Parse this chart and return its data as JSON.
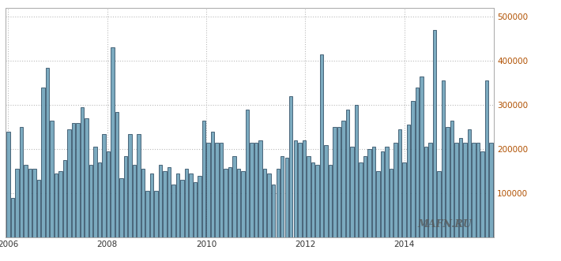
{
  "ylim": [
    0,
    520000
  ],
  "yticks": [
    100000,
    200000,
    300000,
    400000,
    500000
  ],
  "xtick_years": [
    2006,
    2008,
    2010,
    2012,
    2014
  ],
  "background_color": "#ffffff",
  "bar_fill_color": "#7baabf",
  "bar_edge_color": "#1c3a52",
  "grid_color": "#bbbbbb",
  "watermark": "MAFN.RU",
  "year_start": 2006,
  "year_end": 2015.75,
  "values": [
    240000,
    90000,
    155000,
    250000,
    165000,
    155000,
    155000,
    130000,
    340000,
    385000,
    265000,
    145000,
    150000,
    175000,
    245000,
    260000,
    260000,
    295000,
    270000,
    165000,
    205000,
    170000,
    235000,
    195000,
    430000,
    285000,
    135000,
    185000,
    235000,
    165000,
    235000,
    155000,
    105000,
    145000,
    105000,
    165000,
    150000,
    160000,
    120000,
    145000,
    130000,
    155000,
    145000,
    125000,
    140000,
    265000,
    215000,
    240000,
    215000,
    215000,
    155000,
    160000,
    185000,
    155000,
    150000,
    290000,
    215000,
    215000,
    220000,
    155000,
    145000,
    120000,
    155000,
    185000,
    180000,
    320000,
    220000,
    215000,
    220000,
    185000,
    170000,
    165000,
    415000,
    210000,
    165000,
    250000,
    250000,
    265000,
    290000,
    205000,
    300000,
    170000,
    185000,
    200000,
    205000,
    150000,
    195000,
    205000,
    155000,
    215000,
    245000,
    170000,
    255000,
    310000,
    340000,
    365000,
    205000,
    215000,
    470000,
    150000,
    355000,
    250000,
    265000,
    215000,
    225000,
    215000,
    245000,
    215000,
    215000,
    195000,
    355000,
    215000
  ]
}
